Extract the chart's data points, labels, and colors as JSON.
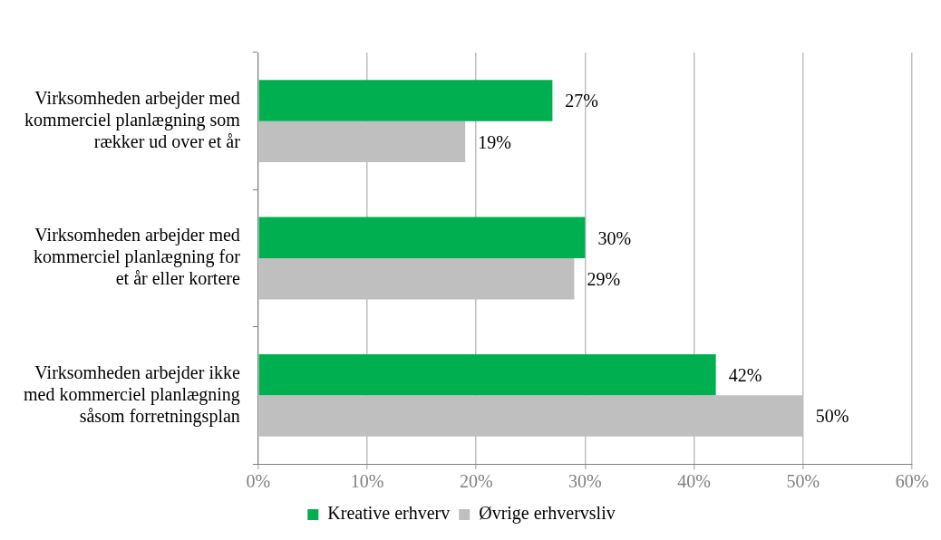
{
  "chart_data": {
    "type": "bar",
    "orientation": "horizontal",
    "categories": [
      "Virksomheden arbejder med kommerciel planlægning som rækker ud over et år",
      "Virksomheden arbejder med kommerciel planlægning for et år eller kortere",
      "Virksomheden arbejder ikke med kommerciel planlægning såsom forretningsplan"
    ],
    "series": [
      {
        "name": "Kreative erhverv",
        "color": "#00b050",
        "values": [
          27,
          30,
          42
        ],
        "value_labels": [
          "27%",
          "30%",
          "42%"
        ]
      },
      {
        "name": "Øvrige erhvervsliv",
        "color": "#bfbfbf",
        "values": [
          19,
          29,
          50
        ],
        "value_labels": [
          "19%",
          "29%",
          "50%"
        ]
      }
    ],
    "xlim": [
      0,
      60
    ],
    "xticks": [
      {
        "value": 0,
        "label": "0%"
      },
      {
        "value": 10,
        "label": "10%"
      },
      {
        "value": 20,
        "label": "20%"
      },
      {
        "value": 30,
        "label": "30%"
      },
      {
        "value": 40,
        "label": "40%"
      },
      {
        "value": 50,
        "label": "50%"
      },
      {
        "value": 60,
        "label": "60%"
      }
    ],
    "grid": "x",
    "legend": "bottom"
  }
}
